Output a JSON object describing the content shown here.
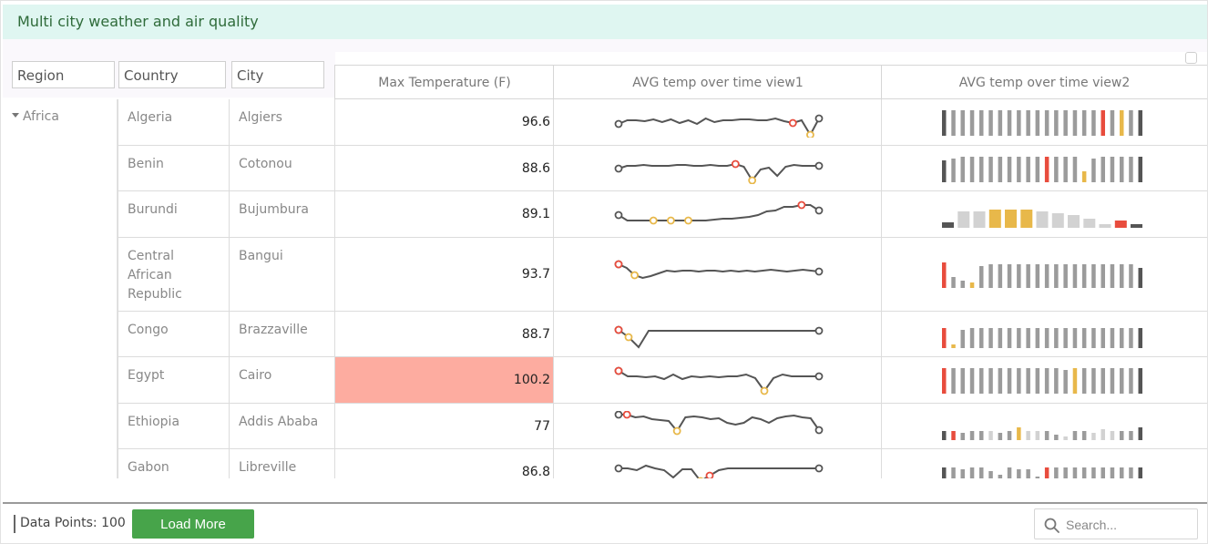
{
  "title": "Multi city weather and air quality",
  "filters": {
    "region": "Region",
    "country": "Country",
    "city": "City"
  },
  "columns": {
    "max_temp": "Max Temperature (F)",
    "view1": "AVG temp over time view1",
    "view2": "AVG temp over time view2"
  },
  "group": {
    "region": "Africa"
  },
  "rows": [
    {
      "country": "Algeria",
      "city": "Algiers",
      "max_temp": "96.6",
      "highlight": false
    },
    {
      "country": "Benin",
      "city": "Cotonou",
      "max_temp": "88.6",
      "highlight": false
    },
    {
      "country": "Burundi",
      "city": "Bujumbura",
      "max_temp": "89.1",
      "highlight": false
    },
    {
      "country": "Central African Republic",
      "city": "Bangui",
      "max_temp": "93.7",
      "highlight": false
    },
    {
      "country": "Congo",
      "city": "Brazzaville",
      "max_temp": "88.7",
      "highlight": false
    },
    {
      "country": "Egypt",
      "city": "Cairo",
      "max_temp": "100.2",
      "highlight": true
    },
    {
      "country": "Ethiopia",
      "city": "Addis Ababa",
      "max_temp": "77",
      "highlight": false
    },
    {
      "country": "Gabon",
      "city": "Libreville",
      "max_temp": "86.8",
      "highlight": false
    }
  ],
  "footer": {
    "data_points": "Data Points: 100",
    "load_more": "Load More",
    "search_placeholder": "Search..."
  },
  "colors": {
    "title_bg": "#dff6f1",
    "title_text": "#2f6b3a",
    "highlight_cell": "#fdaca0",
    "button": "#47a44a",
    "spark_line": "#555555",
    "marker_high": "#e84c3d",
    "marker_low": "#e8b84a",
    "bar_normal": "#9b9b9b",
    "bar_end": "#555555"
  },
  "icons": {
    "search": "search-icon",
    "expand": "caret-down-icon"
  }
}
